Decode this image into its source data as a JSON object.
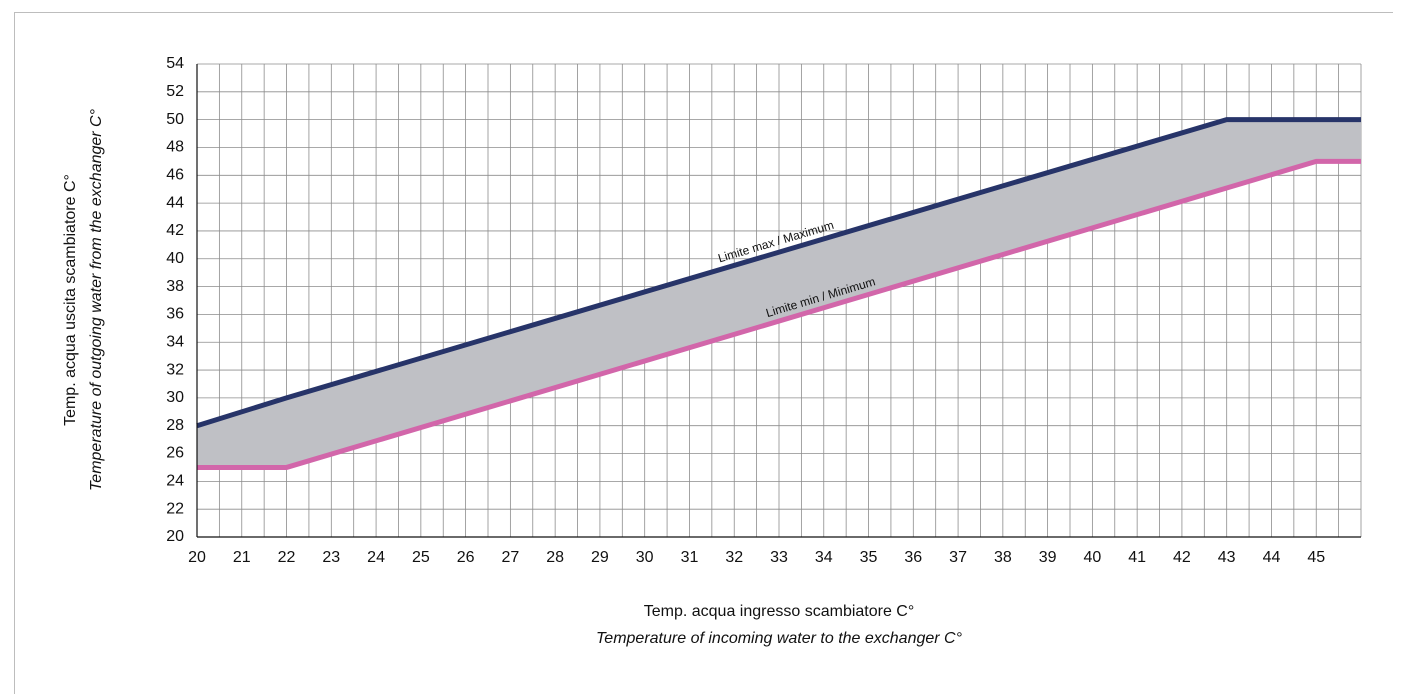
{
  "chart_data": {
    "type": "area",
    "xlabel": "Temp. acqua ingresso scambiatore C°",
    "xlabel_en": "Temperature of incoming water to the exchanger C°",
    "ylabel": "Temp. acqua uscita scambiatore C°",
    "ylabel_en": "Temperature of outgoing water from the exchanger C°",
    "xlim": [
      20,
      46
    ],
    "ylim": [
      20,
      54
    ],
    "x_ticks": [
      20,
      21,
      22,
      23,
      24,
      25,
      26,
      27,
      28,
      29,
      30,
      31,
      32,
      33,
      34,
      35,
      36,
      37,
      38,
      39,
      40,
      41,
      42,
      43,
      44,
      45
    ],
    "y_ticks": [
      20,
      22,
      24,
      26,
      28,
      30,
      32,
      34,
      36,
      38,
      40,
      42,
      44,
      46,
      48,
      50,
      52,
      54
    ],
    "x_minor_step": 0.5,
    "y_minor_step": 2,
    "grid": true,
    "band_fill": "#bfc0c5",
    "series": [
      {
        "name": "Limite max / Maximum",
        "color": "#273469",
        "x": [
          20,
          22,
          43,
          46
        ],
        "y": [
          28,
          30,
          50,
          50
        ]
      },
      {
        "name": "Limite min / Minimum",
        "color": "#d266aa",
        "x": [
          20,
          22,
          45,
          46
        ],
        "y": [
          25,
          25,
          47,
          47
        ]
      }
    ],
    "annotations": [
      {
        "text": "Limite max / Maximum",
        "series": 0,
        "x": 33
      },
      {
        "text": "Limite min / Minimum",
        "series": 1,
        "x": 34
      }
    ]
  }
}
